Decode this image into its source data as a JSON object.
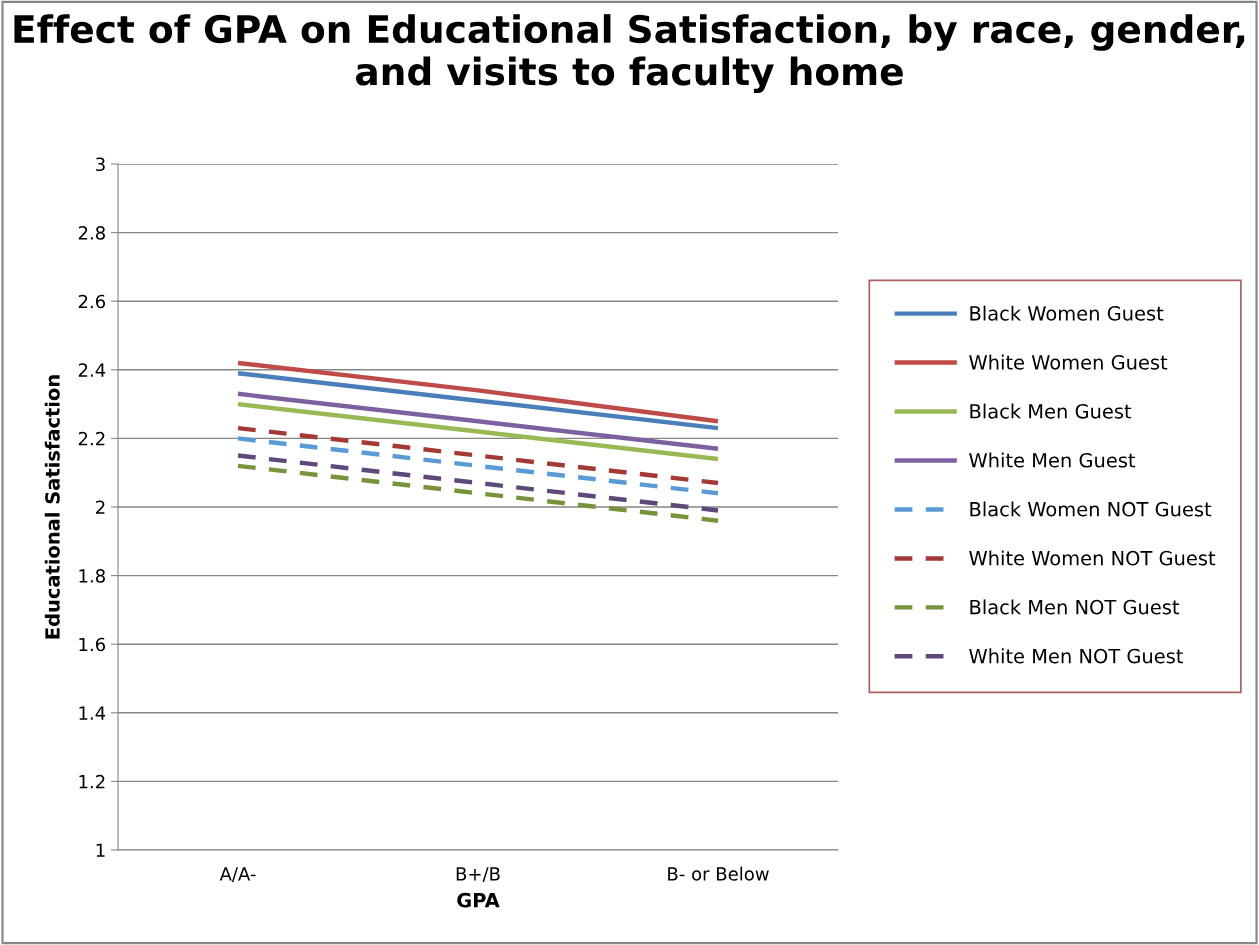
{
  "chart_data": {
    "type": "line",
    "title": "Effect of GPA on Educational Satisfaction, by race, gender, and visits to faculty home",
    "xlabel": "GPA",
    "ylabel": "Educational Satisfaction",
    "categories": [
      "A/A-",
      "B+/B",
      "B- or Below"
    ],
    "ylim": [
      1,
      3
    ],
    "yticks": [
      1,
      1.2,
      1.4,
      1.6,
      1.8,
      2,
      2.2,
      2.4,
      2.6,
      2.8,
      3
    ],
    "grid": "y",
    "legend": "right",
    "marker": "none",
    "series": [
      {
        "name": "Black Women Guest",
        "color": "#4a7ebb",
        "line_style": "solid",
        "values": [
          2.39,
          2.31,
          2.23
        ]
      },
      {
        "name": "White Women Guest",
        "color": "#be4b48",
        "line_style": "solid",
        "values": [
          2.42,
          2.34,
          2.25
        ]
      },
      {
        "name": "Black Men Guest",
        "color": "#98b954",
        "line_style": "solid",
        "values": [
          2.3,
          2.22,
          2.14
        ]
      },
      {
        "name": "White Men Guest",
        "color": "#7d60a0",
        "line_style": "solid",
        "values": [
          2.33,
          2.25,
          2.17
        ]
      },
      {
        "name": "Black Women NOT Guest",
        "color": "#5b9bd5",
        "line_style": "dashed",
        "values": [
          2.2,
          2.12,
          2.04
        ]
      },
      {
        "name": "White Women NOT Guest",
        "color": "#a33a36",
        "line_style": "dashed",
        "values": [
          2.23,
          2.15,
          2.07
        ]
      },
      {
        "name": "Black Men NOT Guest",
        "color": "#77933c",
        "line_style": "dashed",
        "values": [
          2.12,
          2.04,
          1.96
        ]
      },
      {
        "name": "White Men NOT Guest",
        "color": "#5f497a",
        "line_style": "dashed",
        "values": [
          2.15,
          2.07,
          1.99
        ]
      }
    ]
  }
}
